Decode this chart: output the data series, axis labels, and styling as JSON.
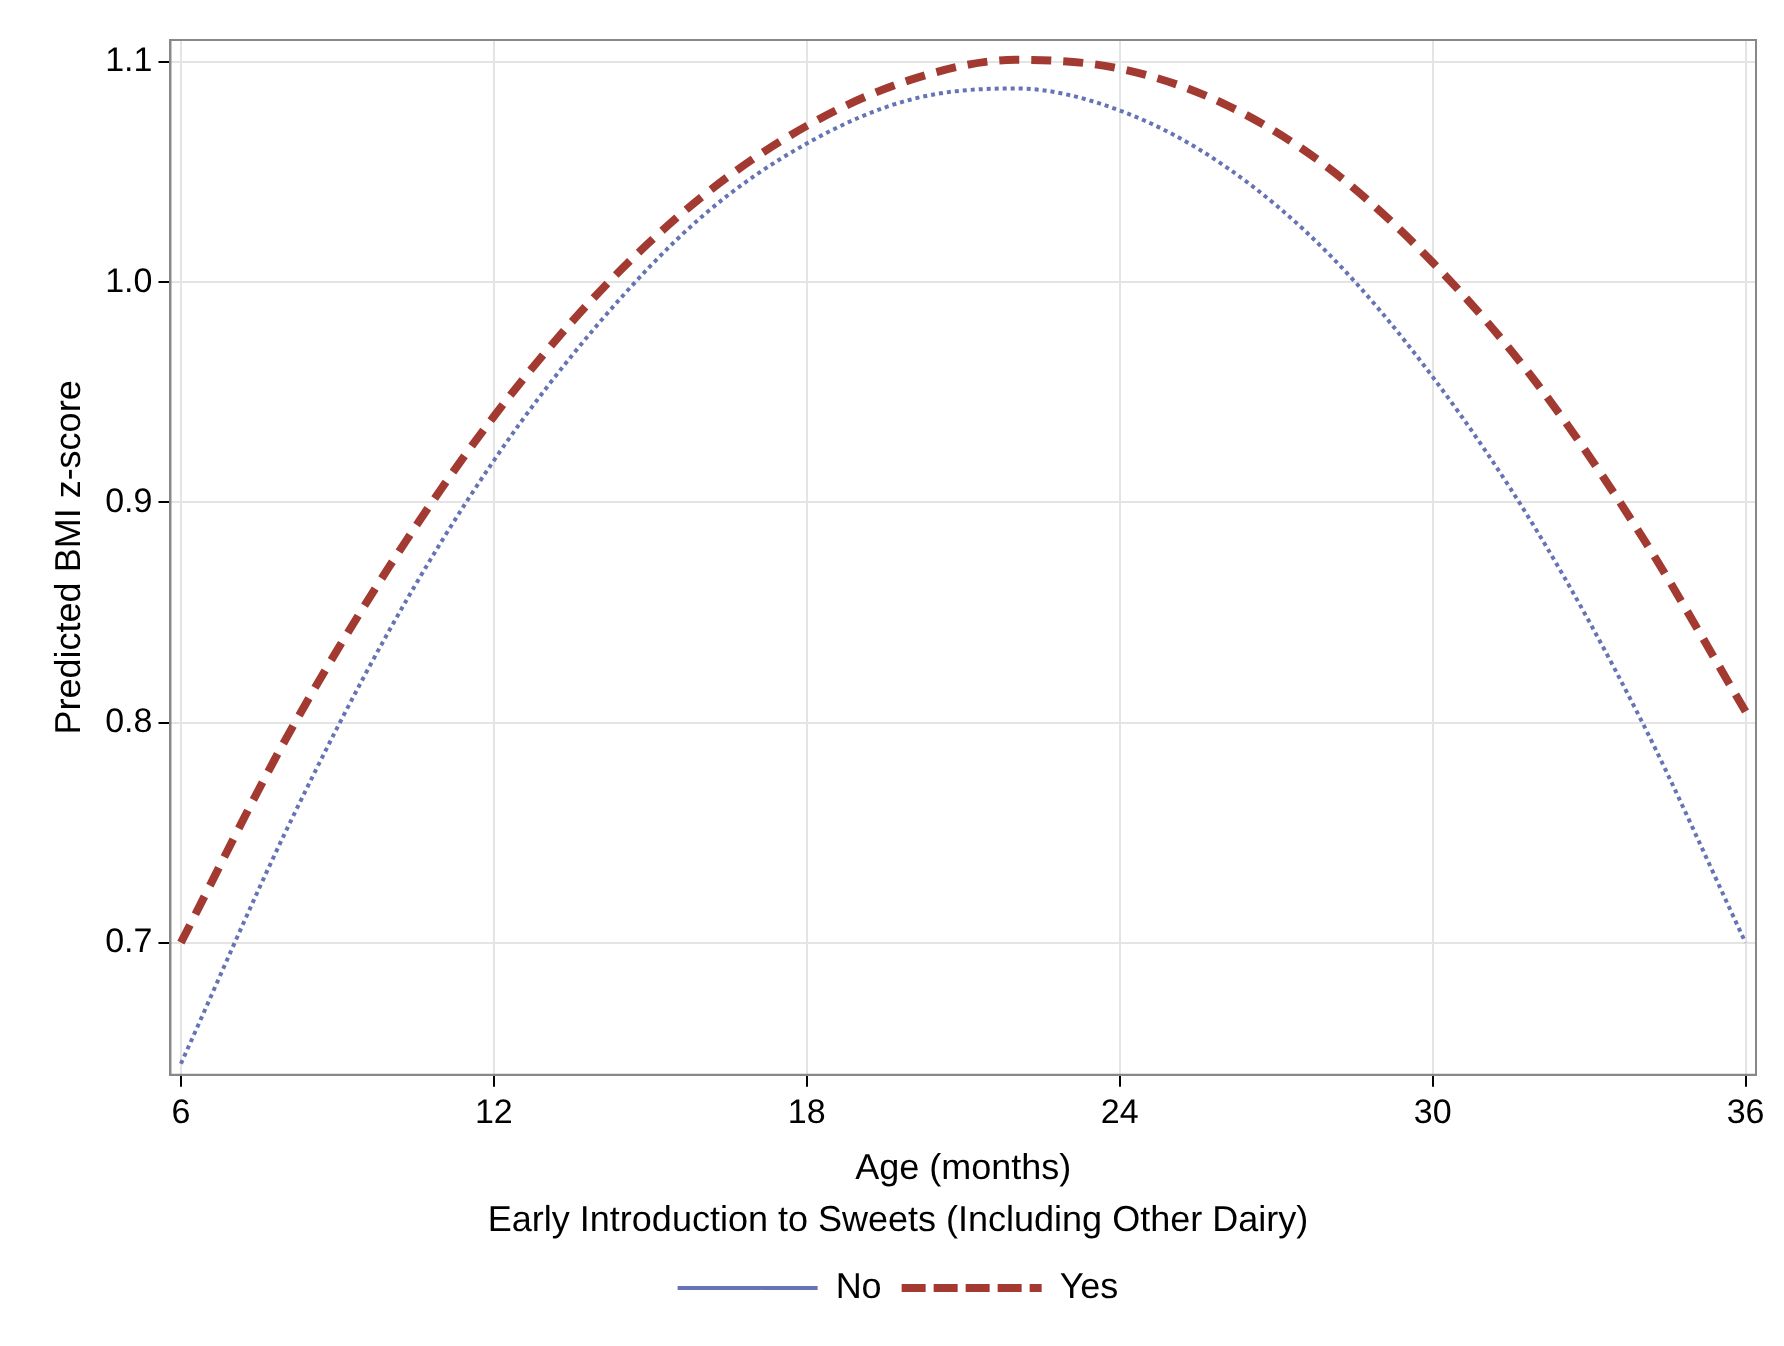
{
  "chart_data": {
    "type": "line",
    "xlabel": "Age (months)",
    "ylabel": "Predicted BMI z-score",
    "legend_title": "Early Introduction to Sweets (Including Other Dairy)",
    "legend": "bottom",
    "grid": true,
    "marker": "none",
    "x": [
      6,
      8,
      10,
      12,
      14,
      16,
      18,
      20,
      22,
      24,
      26,
      28,
      30,
      32,
      34,
      36
    ],
    "xlim": [
      5.8,
      36.2
    ],
    "xticks": [
      6,
      12,
      18,
      24,
      30,
      36
    ],
    "ylim": [
      0.64,
      1.11
    ],
    "yticks": [
      {
        "value": 0.7,
        "label": "0.7"
      },
      {
        "value": 0.8,
        "label": "0.8"
      },
      {
        "value": 0.9,
        "label": "0.9"
      },
      {
        "value": 1.0,
        "label": "1.0"
      },
      {
        "value": 1.1,
        "label": "1.1"
      }
    ],
    "series": [
      {
        "name": "No",
        "color": "#6673b4",
        "line_style": "dotted",
        "values": [
          0.645,
          0.75,
          0.842,
          0.919,
          0.981,
          1.03,
          1.063,
          1.083,
          1.088,
          1.078,
          1.053,
          1.013,
          0.957,
          0.887,
          0.801,
          0.7
        ]
      },
      {
        "name": "Yes",
        "color": "#a23a32",
        "line_style": "dashed",
        "values": [
          0.7,
          0.792,
          0.871,
          0.939,
          0.995,
          1.039,
          1.071,
          1.092,
          1.101,
          1.097,
          1.081,
          1.052,
          1.009,
          0.954,
          0.885,
          0.805
        ]
      }
    ]
  }
}
